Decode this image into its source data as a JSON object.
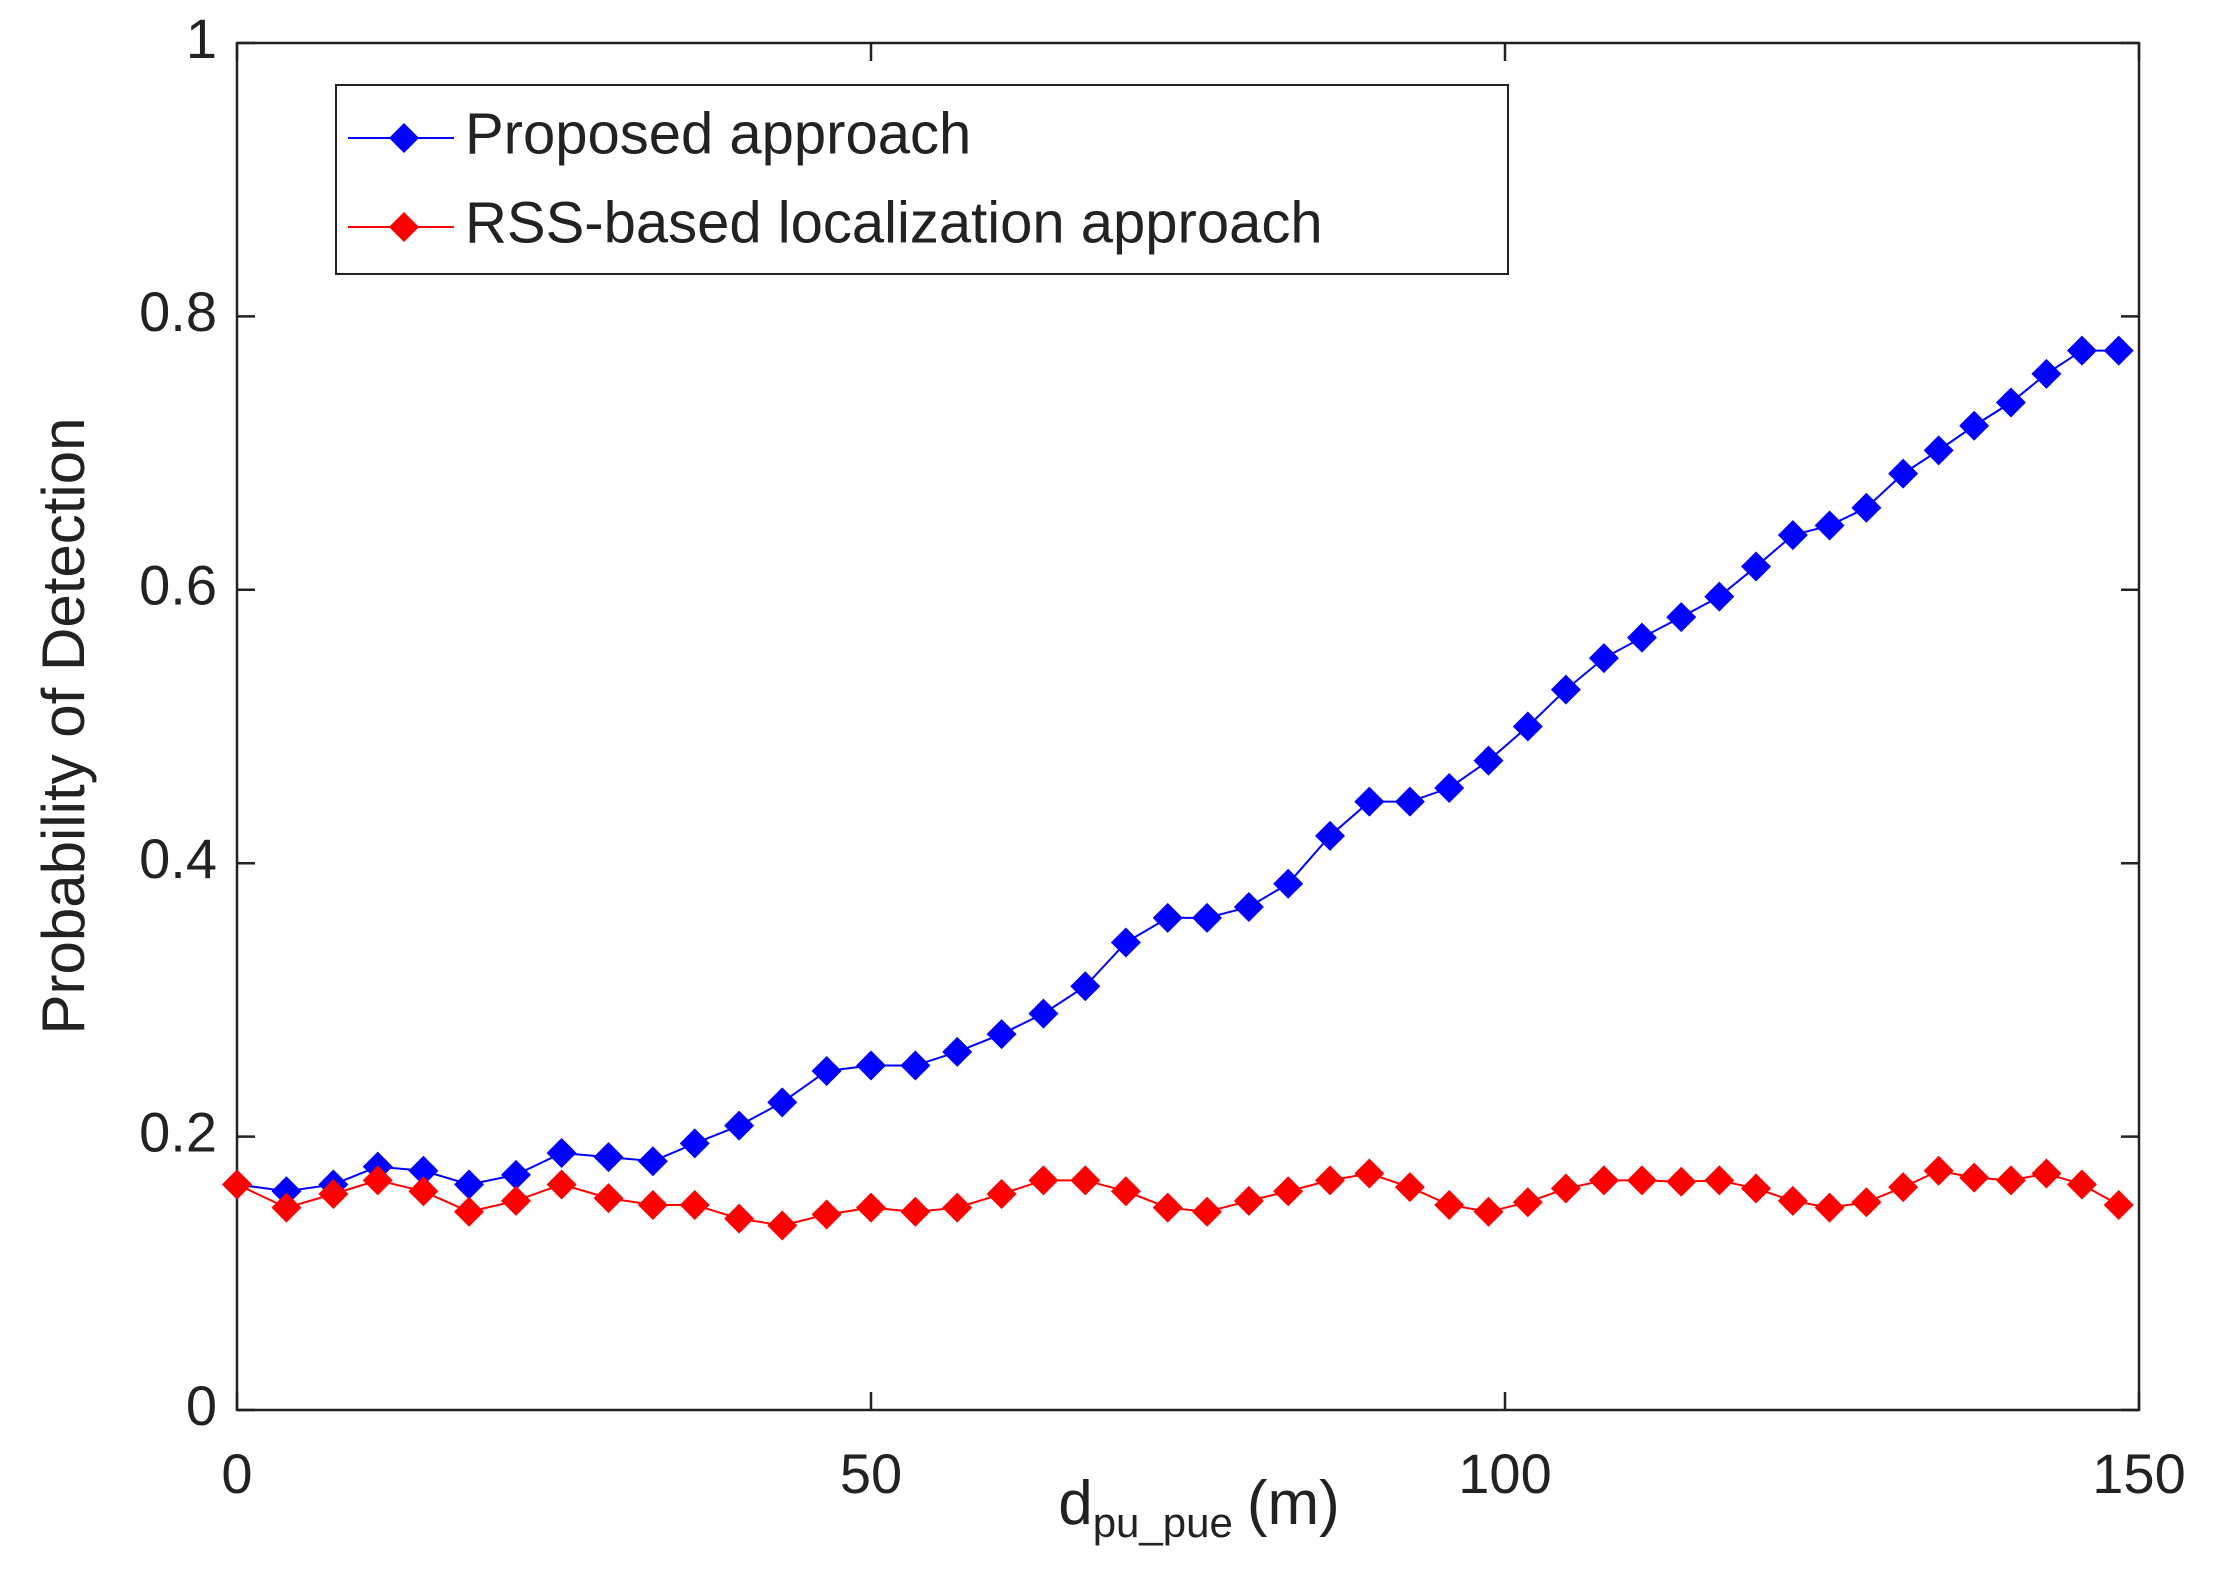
{
  "chart_data": {
    "type": "line",
    "xlabel": {
      "base": "d",
      "subscript": "pu_pue",
      "unit": "(m)"
    },
    "ylabel": "Probability of Detection",
    "x": [
      0,
      3.9,
      7.6,
      11.1,
      14.7,
      18.3,
      22.0,
      25.6,
      29.3,
      32.8,
      36.1,
      39.6,
      43.0,
      46.5,
      50.0,
      53.5,
      56.8,
      60.3,
      63.6,
      66.9,
      70.1,
      73.4,
      76.5,
      79.8,
      82.9,
      86.2,
      89.3,
      92.5,
      95.6,
      98.7,
      101.8,
      104.8,
      107.8,
      110.8,
      113.9,
      116.9,
      119.8,
      122.7,
      125.6,
      128.5,
      131.4,
      134.2,
      137.0,
      139.9,
      142.7,
      145.5,
      148.4
    ],
    "series": [
      {
        "name": "Proposed approach",
        "color": "#0000ff",
        "values": [
          0.165,
          0.16,
          0.165,
          0.178,
          0.175,
          0.165,
          0.172,
          0.188,
          0.185,
          0.182,
          0.195,
          0.208,
          0.225,
          0.248,
          0.252,
          0.252,
          0.262,
          0.275,
          0.29,
          0.31,
          0.342,
          0.36,
          0.36,
          0.368,
          0.385,
          0.42,
          0.445,
          0.445,
          0.455,
          0.475,
          0.5,
          0.527,
          0.55,
          0.565,
          0.58,
          0.595,
          0.617,
          0.64,
          0.647,
          0.66,
          0.685,
          0.702,
          0.72,
          0.737,
          0.758,
          0.775,
          0.775
        ]
      },
      {
        "name": "RSS-based localization approach",
        "color": "#ff0000",
        "values": [
          0.165,
          0.148,
          0.158,
          0.168,
          0.16,
          0.145,
          0.153,
          0.165,
          0.155,
          0.15,
          0.15,
          0.14,
          0.135,
          0.143,
          0.148,
          0.145,
          0.148,
          0.158,
          0.168,
          0.168,
          0.16,
          0.148,
          0.145,
          0.153,
          0.16,
          0.168,
          0.173,
          0.163,
          0.15,
          0.145,
          0.152,
          0.162,
          0.168,
          0.168,
          0.167,
          0.168,
          0.162,
          0.153,
          0.148,
          0.152,
          0.163,
          0.175,
          0.17,
          0.168,
          0.173,
          0.165,
          0.15
        ]
      }
    ],
    "xlim": [
      0,
      150
    ],
    "xticks": [
      0,
      50,
      100,
      150
    ],
    "ylim": [
      0,
      1
    ],
    "yticks": [
      0,
      0.2,
      0.4,
      0.6,
      0.8,
      1
    ],
    "legend": "upper left",
    "grid": false
  }
}
